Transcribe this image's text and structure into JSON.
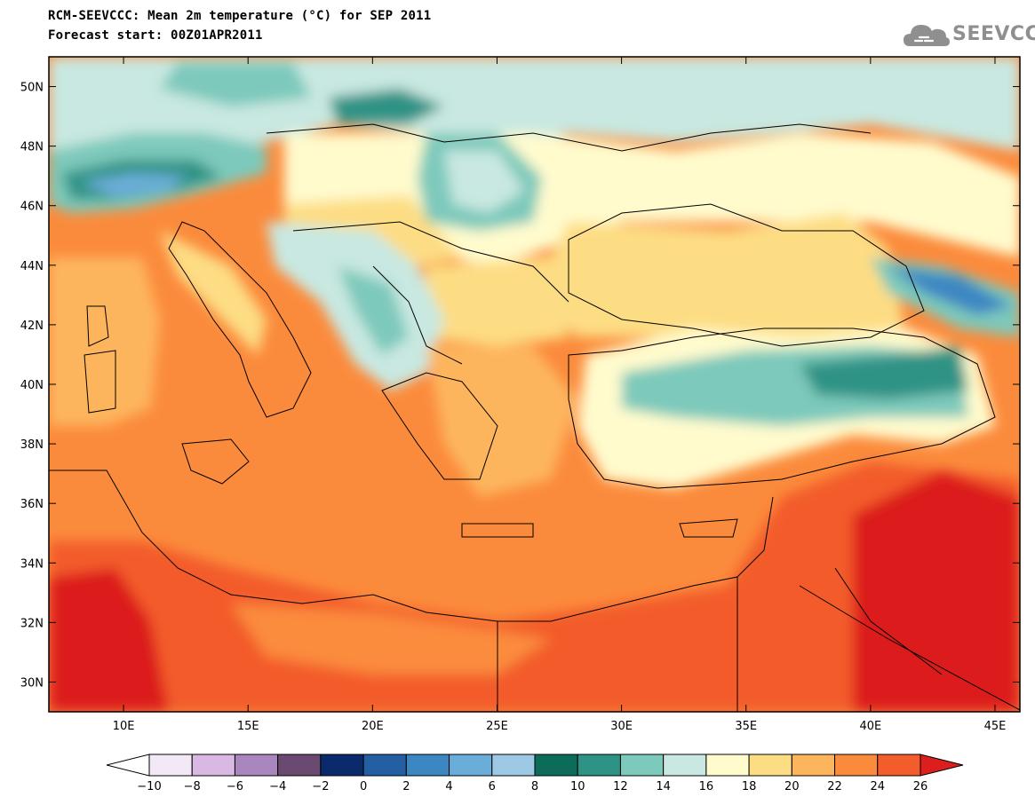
{
  "header": {
    "title": "RCM-SEEVCCC: Mean 2m temperature (°C) for SEP 2011",
    "subtitle": "Forecast start: 00Z01APR2011",
    "logo_text": "SEEVCCC"
  },
  "map": {
    "lon_range": [
      7,
      46
    ],
    "lat_range": [
      29,
      51
    ],
    "x_ticks": [
      "10E",
      "15E",
      "20E",
      "25E",
      "30E",
      "35E",
      "40E",
      "45E"
    ],
    "y_ticks": [
      "50N",
      "48N",
      "46N",
      "44N",
      "42N",
      "40N",
      "38N",
      "36N",
      "34N",
      "32N",
      "30N"
    ]
  },
  "colorbar": {
    "labels": [
      "-10",
      "-8",
      "-6",
      "-4",
      "-2",
      "0",
      "2",
      "4",
      "6",
      "8",
      "10",
      "12",
      "14",
      "16",
      "18",
      "20",
      "22",
      "24",
      "26"
    ],
    "colors": [
      "#f3e9f6",
      "#d9b8e4",
      "#a986bd",
      "#6b4a72",
      "#0a2a6b",
      "#245fa3",
      "#3c87c2",
      "#6aadd8",
      "#9dc9e4",
      "#0d6b5a",
      "#2e9385",
      "#7dc9bb",
      "#c8e8e1",
      "#fffbcd",
      "#fddd84",
      "#fdb55d",
      "#fb8b3c",
      "#f35c2b"
    ],
    "under_color": "#ffffff",
    "over_color": "#dc1e1e"
  }
}
